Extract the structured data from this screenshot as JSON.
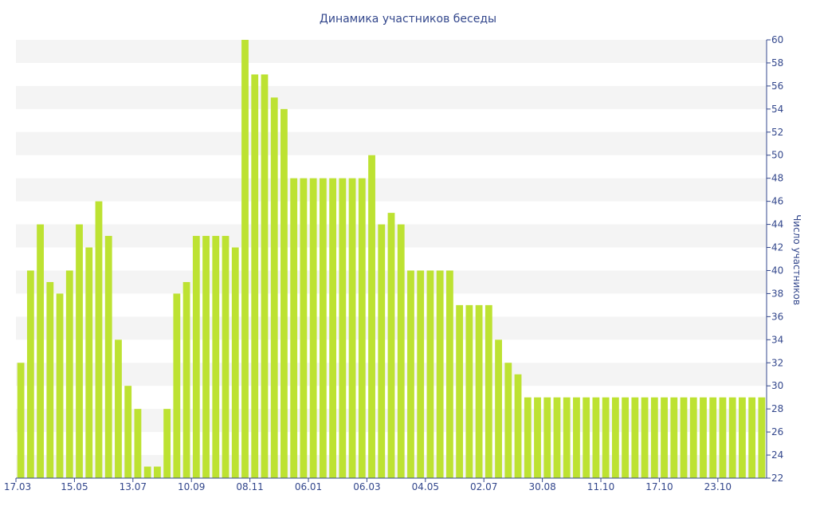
{
  "chart_data": {
    "type": "bar",
    "title": "Динамика участников беседы",
    "ylabel": "Число участников",
    "xlabel": "",
    "ylim": [
      22,
      60
    ],
    "y_ticks": [
      22,
      24,
      26,
      28,
      30,
      32,
      34,
      36,
      38,
      40,
      42,
      44,
      46,
      48,
      50,
      52,
      54,
      56,
      58,
      60
    ],
    "y_axis_side": "right",
    "grid": "alternating horizontal bands",
    "legend": "none",
    "bar_color": "#bde232",
    "x_tick_labels": [
      {
        "index": 0,
        "label": "17.03"
      },
      {
        "index": 6,
        "label": "15.05"
      },
      {
        "index": 12,
        "label": "13.07"
      },
      {
        "index": 18,
        "label": "10.09"
      },
      {
        "index": 24,
        "label": "08.11"
      },
      {
        "index": 30,
        "label": "06.01"
      },
      {
        "index": 36,
        "label": "06.03"
      },
      {
        "index": 42,
        "label": "04.05"
      },
      {
        "index": 48,
        "label": "02.07"
      },
      {
        "index": 54,
        "label": "30.08"
      },
      {
        "index": 60,
        "label": "11.10"
      },
      {
        "index": 66,
        "label": "17.10"
      },
      {
        "index": 72,
        "label": "23.10"
      }
    ],
    "values": [
      32,
      40,
      44,
      39,
      38,
      40,
      44,
      42,
      46,
      43,
      34,
      30,
      28,
      23,
      23,
      28,
      38,
      39,
      43,
      43,
      43,
      43,
      42,
      60,
      57,
      57,
      55,
      54,
      48,
      48,
      48,
      48,
      48,
      48,
      48,
      48,
      50,
      44,
      45,
      44,
      40,
      40,
      40,
      40,
      40,
      37,
      37,
      37,
      37,
      34,
      32,
      31,
      29,
      29,
      29,
      29,
      29,
      29,
      29,
      29,
      29,
      29,
      29,
      29,
      29,
      29,
      29,
      29,
      29,
      29,
      29,
      29,
      29,
      29,
      29,
      29,
      29
    ]
  }
}
